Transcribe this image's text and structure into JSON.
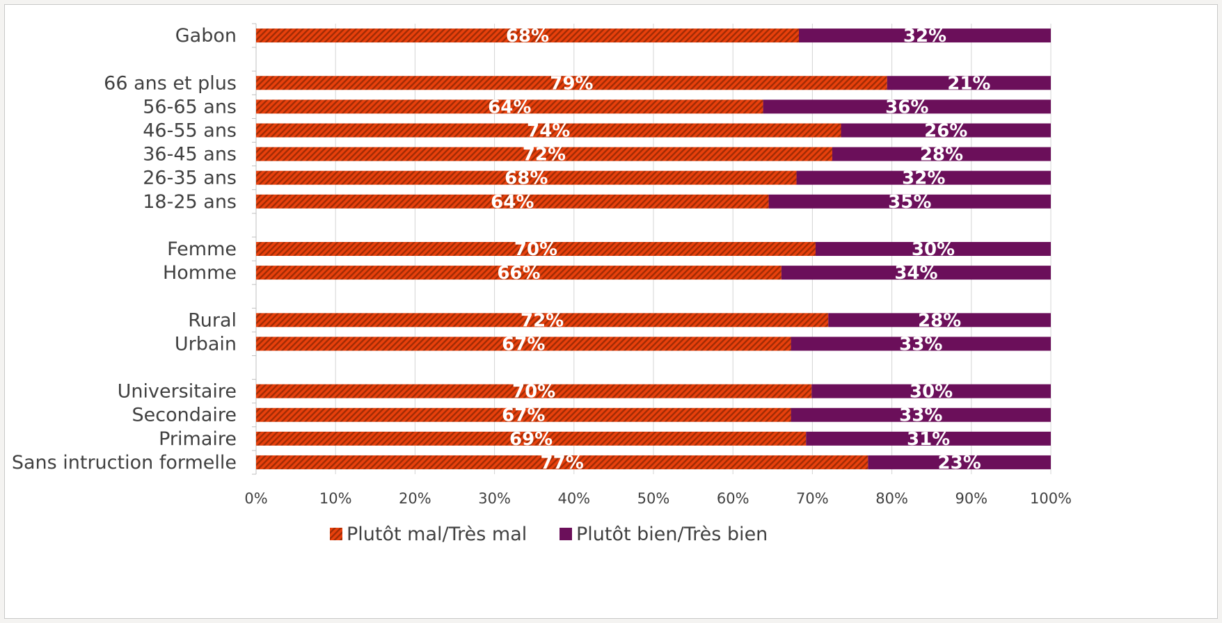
{
  "chart_data": {
    "type": "bar",
    "orientation": "horizontal",
    "stacked": true,
    "categories": [
      "Gabon",
      "",
      "66 ans et plus",
      "56-65 ans",
      "46-55 ans",
      "36-45 ans",
      "26-35 ans",
      "18-25 ans",
      "",
      "Femme",
      "Homme",
      "",
      "Rural",
      "Urbain",
      "",
      "Universitaire",
      "Secondaire",
      "Primaire",
      "Sans intruction formelle"
    ],
    "series": [
      {
        "name": "Plutôt mal/Très mal",
        "color": "#e8400c",
        "pattern": "diagonal-stripes",
        "values": [
          68.3,
          null,
          79.4,
          63.8,
          73.6,
          72.5,
          68.0,
          64.5,
          null,
          70.4,
          66.1,
          null,
          72.0,
          67.3,
          null,
          69.9,
          67.3,
          69.2,
          77.0
        ],
        "labels": [
          "68%",
          "",
          "79%",
          "64%",
          "74%",
          "72%",
          "68%",
          "64%",
          "",
          "70%",
          "66%",
          "",
          "72%",
          "67%",
          "",
          "70%",
          "67%",
          "69%",
          "77%"
        ]
      },
      {
        "name": "Plutôt bien/Très bien",
        "color": "#6b0f5a",
        "values": [
          31.7,
          null,
          20.6,
          36.2,
          26.4,
          27.5,
          32.0,
          35.5,
          null,
          29.6,
          33.9,
          null,
          28.0,
          32.7,
          null,
          30.1,
          32.7,
          30.8,
          23.0
        ],
        "labels": [
          "32%",
          "",
          "21%",
          "36%",
          "26%",
          "28%",
          "32%",
          "35%",
          "",
          "30%",
          "34%",
          "",
          "28%",
          "33%",
          "",
          "30%",
          "33%",
          "31%",
          "23%"
        ]
      }
    ],
    "xlim": [
      0,
      100
    ],
    "x_ticks": [
      "0%",
      "10%",
      "20%",
      "30%",
      "40%",
      "50%",
      "60%",
      "70%",
      "80%",
      "90%",
      "100%"
    ],
    "grid": true,
    "legend_position": "bottom",
    "title": "",
    "xlabel": "",
    "ylabel": ""
  }
}
